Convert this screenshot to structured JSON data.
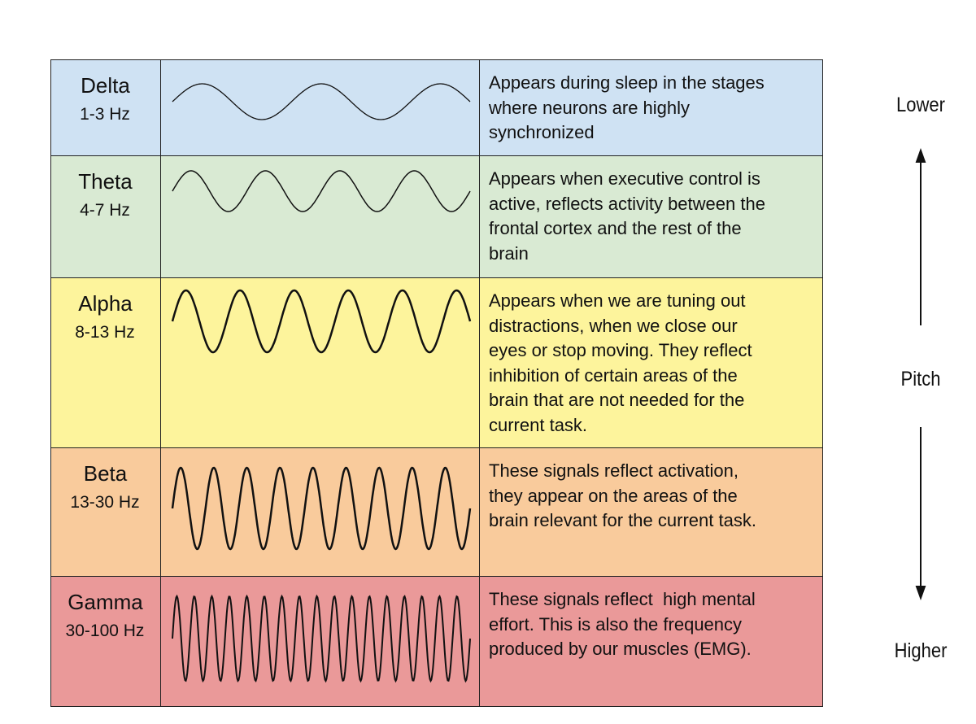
{
  "rows": [
    {
      "name": "Delta",
      "frequency": "1-3 Hz",
      "description": [
        "Appears during sleep in the stages",
        "where neurons are highly",
        "synchronized"
      ]
    },
    {
      "name": "Theta",
      "frequency": "4-7 Hz",
      "description": [
        "Appears when executive control is",
        "active, reflects activity between the",
        "frontal cortex and the rest of the",
        "brain"
      ]
    },
    {
      "name": "Alpha",
      "frequency": "8-13 Hz",
      "description": [
        "Appears when we are tuning out",
        "distractions, when we close our",
        "eyes or stop moving. They reflect",
        "inhibition of certain areas of the",
        "brain that are not needed for the",
        "current task."
      ]
    },
    {
      "name": "Beta",
      "frequency": "13-30 Hz",
      "description": [
        "These signals reflect activation,",
        "they appear on the areas of the",
        "brain relevant for the current task."
      ]
    },
    {
      "name": "Gamma",
      "frequency": "30-100 Hz",
      "description": [
        "These signals reflect  high mental",
        "effort. This is also the frequency",
        "produced by our muscles (EMG)."
      ]
    }
  ],
  "scale": {
    "top": "Lower",
    "middle": "Pitch",
    "bottom": "Higher"
  }
}
